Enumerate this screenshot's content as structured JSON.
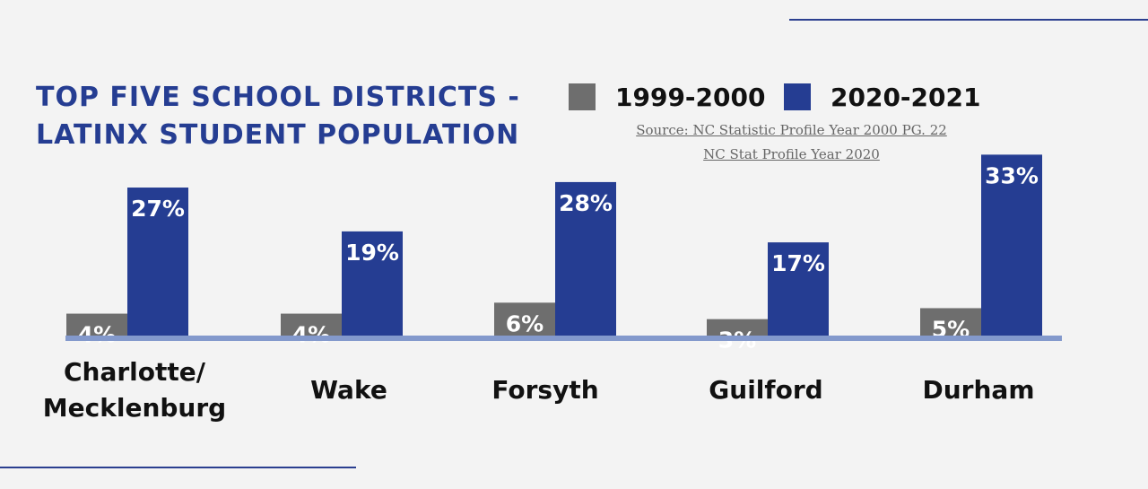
{
  "title_line1": "TOP FIVE SCHOOL DISTRICTS -",
  "title_line2": "LATINX STUDENT POPULATION",
  "source_line1": "Source: NC Statistic Profile Year 2000 PG. 22",
  "source_line2": "NC Stat Profile Year 2020",
  "colors": {
    "series_1999": "#6e6e6e",
    "series_2020": "#253d92",
    "axis": "#8399cc",
    "title": "#253d92"
  },
  "chart_data": {
    "type": "bar",
    "title": "TOP FIVE SCHOOL DISTRICTS - LATINX STUDENT POPULATION",
    "categories": [
      "Charlotte/\nMecklenburg",
      "Wake",
      "Forsyth",
      "Guilford",
      "Durham"
    ],
    "series": [
      {
        "name": "1999-2000",
        "values": [
          4,
          4,
          6,
          3,
          5
        ],
        "labels": [
          "4%",
          "4%",
          "6%",
          "3%",
          "5%"
        ]
      },
      {
        "name": "2020-2021",
        "values": [
          27,
          19,
          28,
          17,
          33
        ],
        "labels": [
          "27%",
          "19%",
          "28%",
          "17%",
          "33%"
        ]
      }
    ],
    "legend_position": "top-right",
    "grid": false
  }
}
